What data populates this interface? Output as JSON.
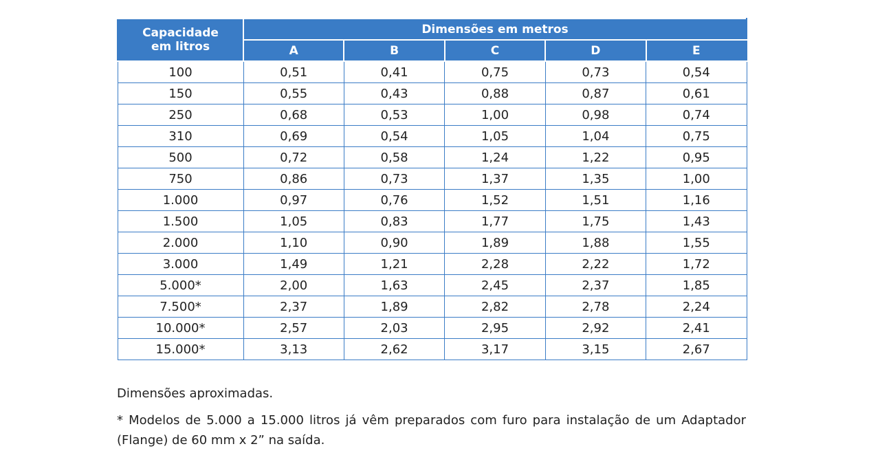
{
  "table": {
    "capacity_header": [
      "Capacidade",
      "em litros"
    ],
    "group_header": "Dimensões em metros",
    "columns": [
      "A",
      "B",
      "C",
      "D",
      "E"
    ],
    "rows": [
      {
        "capacity": "100",
        "values": [
          "0,51",
          "0,41",
          "0,75",
          "0,73",
          "0,54"
        ]
      },
      {
        "capacity": "150",
        "values": [
          "0,55",
          "0,43",
          "0,88",
          "0,87",
          "0,61"
        ]
      },
      {
        "capacity": "250",
        "values": [
          "0,68",
          "0,53",
          "1,00",
          "0,98",
          "0,74"
        ]
      },
      {
        "capacity": "310",
        "values": [
          "0,69",
          "0,54",
          "1,05",
          "1,04",
          "0,75"
        ]
      },
      {
        "capacity": "500",
        "values": [
          "0,72",
          "0,58",
          "1,24",
          "1,22",
          "0,95"
        ]
      },
      {
        "capacity": "750",
        "values": [
          "0,86",
          "0,73",
          "1,37",
          "1,35",
          "1,00"
        ]
      },
      {
        "capacity": "1.000",
        "values": [
          "0,97",
          "0,76",
          "1,52",
          "1,51",
          "1,16"
        ]
      },
      {
        "capacity": "1.500",
        "values": [
          "1,05",
          "0,83",
          "1,77",
          "1,75",
          "1,43"
        ]
      },
      {
        "capacity": "2.000",
        "values": [
          "1,10",
          "0,90",
          "1,89",
          "1,88",
          "1,55"
        ]
      },
      {
        "capacity": "3.000",
        "values": [
          "1,49",
          "1,21",
          "2,28",
          "2,22",
          "1,72"
        ]
      },
      {
        "capacity": "5.000*",
        "values": [
          "2,00",
          "1,63",
          "2,45",
          "2,37",
          "1,85"
        ]
      },
      {
        "capacity": "7.500*",
        "values": [
          "2,37",
          "1,89",
          "2,82",
          "2,78",
          "2,24"
        ]
      },
      {
        "capacity": "10.000*",
        "values": [
          "2,57",
          "2,03",
          "2,95",
          "2,92",
          "2,41"
        ]
      },
      {
        "capacity": "15.000*",
        "values": [
          "3,13",
          "2,62",
          "3,17",
          "3,15",
          "2,67"
        ]
      }
    ]
  },
  "notes": {
    "approx": "Dimensões aproximadas.",
    "footnote": "* Modelos de 5.000 a 15.000 litros já vêm preparados com furo para instalação de um Adaptador (Flange) de 60 mm x 2” na saída."
  },
  "colors": {
    "header_bg": "#3a7cc6",
    "grid": "#3a7cc6",
    "text": "#222222"
  }
}
